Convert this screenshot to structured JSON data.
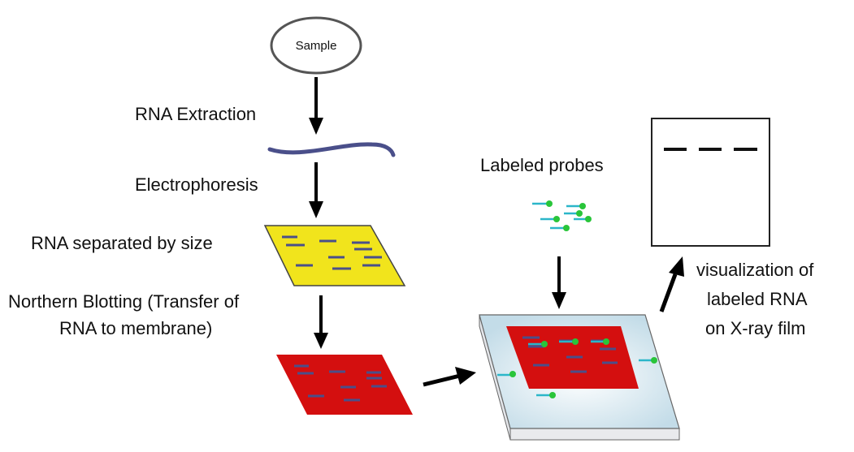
{
  "colors": {
    "gel": "#f1e41c",
    "membrane": "#d40f0f",
    "band": "#4a4f8a",
    "probe_line": "#2bb6c9",
    "probe_dot": "#29c53a",
    "tray_top": "#cfe4ee",
    "tray_side": "#e4e6ea",
    "arrow": "#000000"
  },
  "icons": {
    "arrow": "arrow-icon",
    "probe": "probe-icon"
  },
  "nodes": {
    "sample": "Sample"
  },
  "labels": {
    "rna_extraction": "RNA Extraction",
    "electrophoresis": "Electrophoresis",
    "separated": "RNA separated by size",
    "blotting_line1": "Northern Blotting (Transfer of",
    "blotting_line2": "RNA to membrane)",
    "labeled_probes": "Labeled probes",
    "visualization_line1": "visualization of",
    "visualization_line2": "labeled RNA",
    "visualization_line3": "on X-ray film"
  }
}
